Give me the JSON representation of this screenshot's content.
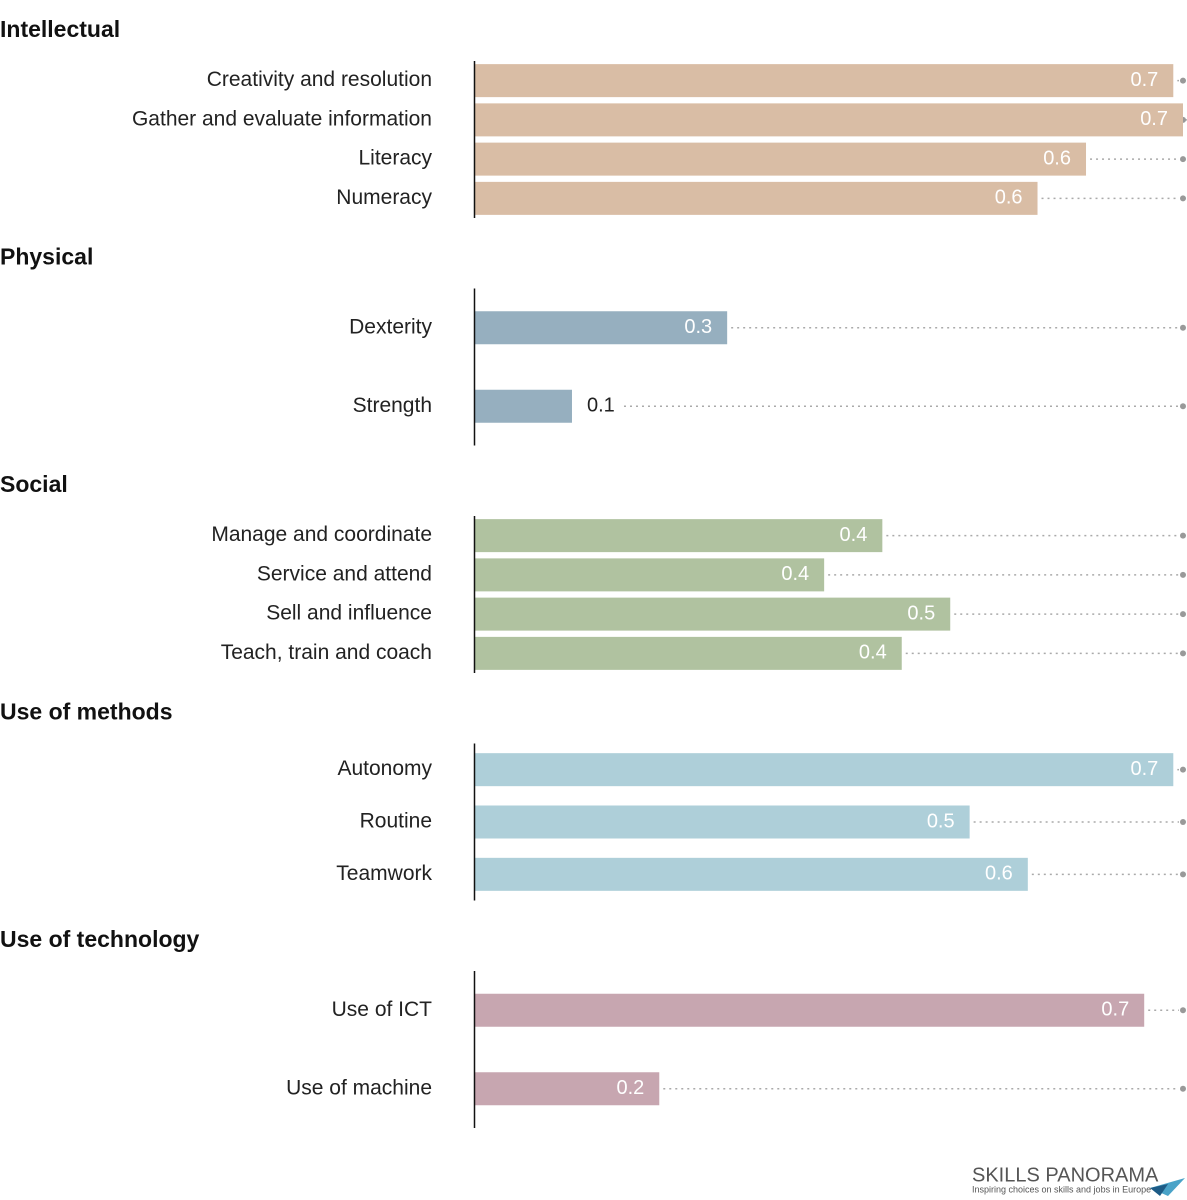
{
  "chart_data": [
    {
      "type": "bar",
      "title": "Intellectual",
      "color": "#d9bda5",
      "xlim": [
        0,
        0.73
      ],
      "categories": [
        "Creativity and resolution",
        "Gather and evaluate information",
        "Literacy",
        "Numeracy"
      ],
      "values": [
        0.72,
        0.73,
        0.63,
        0.58
      ],
      "value_labels": [
        "0.7",
        "0.7",
        "0.6",
        "0.6"
      ]
    },
    {
      "type": "bar",
      "title": "Physical",
      "color": "#96afbf",
      "xlim": [
        0,
        0.73
      ],
      "categories": [
        "Dexterity",
        "Strength"
      ],
      "values": [
        0.26,
        0.1
      ],
      "value_labels": [
        "0.3",
        "0.1"
      ]
    },
    {
      "type": "bar",
      "title": "Social",
      "color": "#b0c2a0",
      "xlim": [
        0,
        0.73
      ],
      "categories": [
        "Manage and coordinate",
        "Service and attend",
        "Sell and influence",
        "Teach, train and coach"
      ],
      "values": [
        0.42,
        0.36,
        0.49,
        0.44
      ],
      "value_labels": [
        "0.4",
        "0.4",
        "0.5",
        "0.4"
      ]
    },
    {
      "type": "bar",
      "title": "Use of methods",
      "color": "#aecfd9",
      "xlim": [
        0,
        0.73
      ],
      "categories": [
        "Autonomy",
        "Routine",
        "Teamwork"
      ],
      "values": [
        0.72,
        0.51,
        0.57
      ],
      "value_labels": [
        "0.7",
        "0.5",
        "0.6"
      ]
    },
    {
      "type": "bar",
      "title": "Use of technology",
      "color": "#c7a6b0",
      "xlim": [
        0,
        0.73
      ],
      "categories": [
        "Use of ICT",
        "Use of machine"
      ],
      "values": [
        0.69,
        0.19
      ],
      "value_labels": [
        "0.7",
        "0.2"
      ]
    }
  ],
  "footer": {
    "brand": "SKILLS PANORAMA",
    "tagline": "Inspiring choices on skills and jobs in Europe"
  }
}
